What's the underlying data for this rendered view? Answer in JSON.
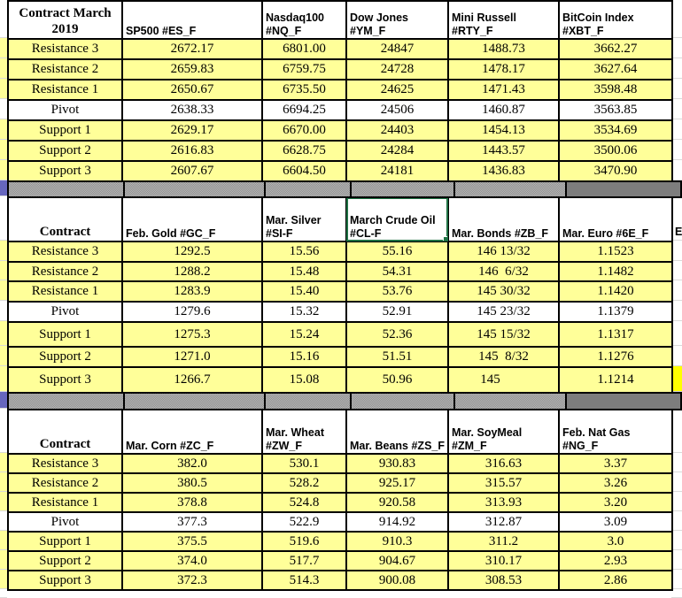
{
  "row_labels": [
    "Resistance 3",
    "Resistance 2",
    "Resistance 1",
    "Pivot",
    "Support 1",
    "Support 2",
    "Support 3"
  ],
  "colors": {
    "cell_yellow": "#FFFF99",
    "pivot_white": "#FFFFFF",
    "separator_gray": "#A3A3A3",
    "separator_gray_dark": "#7D7D7D",
    "edge_purple": "#6666BE",
    "bright_yellow_fragment": "#FFFF00",
    "selection_green": "#1F7244",
    "border_black": "#000000"
  },
  "sections": [
    {
      "corner": "Contract March\n2019",
      "columns": [
        "SP500 #ES_F",
        "Nasdaq100\n#NQ_F",
        "Dow Jones\n#YM_F",
        "Mini Russell\n#RTY_F",
        "BitCoin Index\n#XBT_F"
      ],
      "rows": [
        {
          "label": "Resistance 3",
          "values": [
            "2672.17",
            "6801.00",
            "24847",
            "1488.73",
            "3662.27"
          ]
        },
        {
          "label": "Resistance 2",
          "values": [
            "2659.83",
            "6759.75",
            "24728",
            "1478.17",
            "3627.64"
          ]
        },
        {
          "label": "Resistance 1",
          "values": [
            "2650.67",
            "6735.50",
            "24625",
            "1471.43",
            "3598.48"
          ]
        },
        {
          "label": "Pivot",
          "values": [
            "2638.33",
            "6694.25",
            "24506",
            "1460.87",
            "3563.85"
          ]
        },
        {
          "label": "Support 1",
          "values": [
            "2629.17",
            "6670.00",
            "24403",
            "1454.13",
            "3534.69"
          ]
        },
        {
          "label": "Support 2",
          "values": [
            "2616.83",
            "6628.75",
            "24284",
            "1443.57",
            "3500.06"
          ]
        },
        {
          "label": "Support 3",
          "values": [
            "2607.67",
            "6604.50",
            "24181",
            "1436.83",
            "3470.90"
          ]
        }
      ]
    },
    {
      "corner": "Contract",
      "columns": [
        "Feb. Gold #GC_F",
        "Mar. Silver\n#SI-F",
        "March Crude Oil\n#CL-F",
        "Mar. Bonds  #ZB_F",
        "Mar.  Euro #6E_F"
      ],
      "selected_column_index": 2,
      "rows": [
        {
          "label": "Resistance 3",
          "values": [
            "1292.5",
            "15.56",
            "55.16",
            "146 13/32",
            "1.1523"
          ]
        },
        {
          "label": "Resistance 2",
          "values": [
            "1288.2",
            "15.48",
            "54.31",
            "146  6/32",
            "1.1482"
          ]
        },
        {
          "label": "Resistance 1",
          "values": [
            "1283.9",
            "15.40",
            "53.76",
            "145 30/32",
            "1.1420"
          ]
        },
        {
          "label": "Pivot",
          "values": [
            "1279.6",
            "15.32",
            "52.91",
            "145 23/32",
            "1.1379"
          ]
        },
        {
          "label": "Support 1",
          "values": [
            "1275.3",
            "15.24",
            "52.36",
            "145 15/32",
            "1.1317"
          ]
        },
        {
          "label": "Support 2",
          "values": [
            "1271.0",
            "15.16",
            "51.51",
            "145  8/32",
            "1.1276"
          ]
        },
        {
          "label": "Support 3",
          "values": [
            "1266.7",
            "15.08",
            "50.96",
            "145        ",
            "1.1214"
          ]
        }
      ]
    },
    {
      "corner": "Contract",
      "columns": [
        "Mar.  Corn #ZC_F",
        "Mar. Wheat\n#ZW_F",
        "Mar. Beans #ZS_F",
        "Mar. SoyMeal\n#ZM_F",
        "Feb. Nat Gas\n#NG_F"
      ],
      "rows": [
        {
          "label": "Resistance 3",
          "values": [
            "382.0",
            "530.1",
            "930.83",
            "316.63",
            "3.37"
          ]
        },
        {
          "label": "Resistance 2",
          "values": [
            "380.5",
            "528.2",
            "925.17",
            "315.57",
            "3.26"
          ]
        },
        {
          "label": "Resistance 1",
          "values": [
            "378.8",
            "524.8",
            "920.58",
            "313.93",
            "3.20"
          ]
        },
        {
          "label": "Pivot",
          "values": [
            "377.3",
            "522.9",
            "914.92",
            "312.87",
            "3.09"
          ]
        },
        {
          "label": "Support 1",
          "values": [
            "375.5",
            "519.6",
            "910.3",
            "311.2",
            "3.0"
          ]
        },
        {
          "label": "Support 2",
          "values": [
            "374.0",
            "517.7",
            "904.67",
            "310.17",
            "2.93"
          ]
        },
        {
          "label": "Support 3",
          "values": [
            "372.3",
            "514.3",
            "900.08",
            "308.53",
            "2.86"
          ]
        }
      ]
    }
  ],
  "edge": {
    "header_fragment": "E"
  }
}
